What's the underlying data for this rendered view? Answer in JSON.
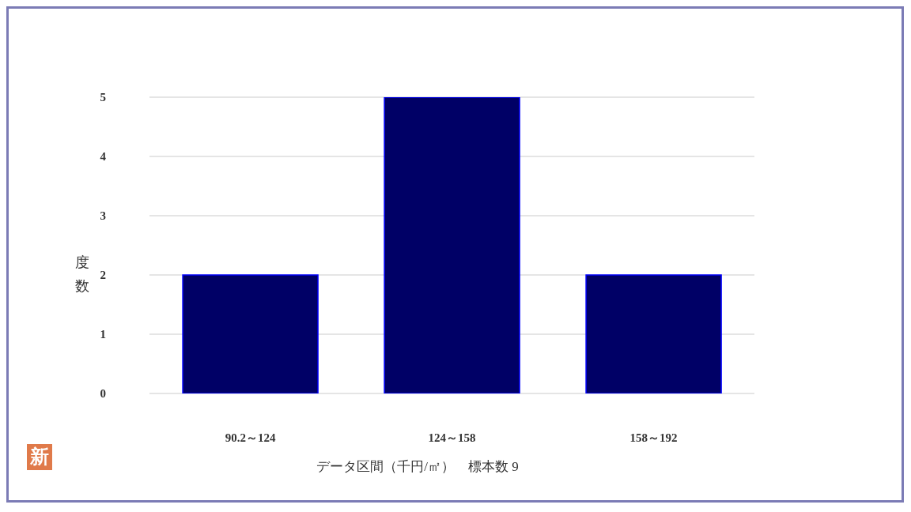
{
  "chart_data": {
    "type": "bar",
    "categories": [
      "90.2～124",
      "124～158",
      "158～192"
    ],
    "values": [
      2,
      5,
      2
    ],
    "color": "#000066",
    "ylim": [
      0,
      5
    ],
    "yticks": [
      0,
      1,
      2,
      3,
      4,
      5
    ],
    "grid": "y",
    "xlabel": "データ区間（千円/㎡）　標本数 9",
    "ylabel": "度数",
    "annotations": [
      "新"
    ]
  }
}
